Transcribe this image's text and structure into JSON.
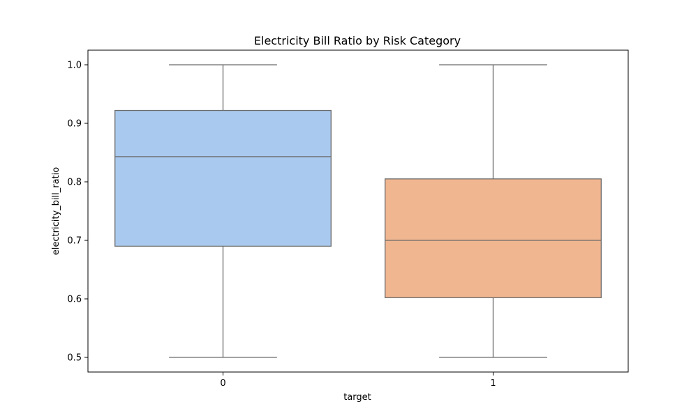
{
  "chart_data": {
    "type": "box",
    "title": "Electricity Bill Ratio by Risk Category",
    "xlabel": "target",
    "ylabel": "electricity_bill_ratio",
    "ylim": [
      0.475,
      1.025
    ],
    "yticks": [
      0.5,
      0.6,
      0.7,
      0.8,
      0.9,
      1.0
    ],
    "ytick_labels": [
      "0.5",
      "0.6",
      "0.7",
      "0.8",
      "0.9",
      "1.0"
    ],
    "grid": false,
    "categories": [
      "0",
      "1"
    ],
    "boxes": [
      {
        "category": "0",
        "whisker_low": 0.5,
        "q1": 0.69,
        "median": 0.843,
        "q3": 0.922,
        "whisker_high": 1.0,
        "color": "#a9c9ee"
      },
      {
        "category": "1",
        "whisker_low": 0.5,
        "q1": 0.602,
        "median": 0.7,
        "q3": 0.805,
        "whisker_high": 1.0,
        "color": "#f0b690"
      }
    ],
    "line_color": "#6b6b6b"
  }
}
